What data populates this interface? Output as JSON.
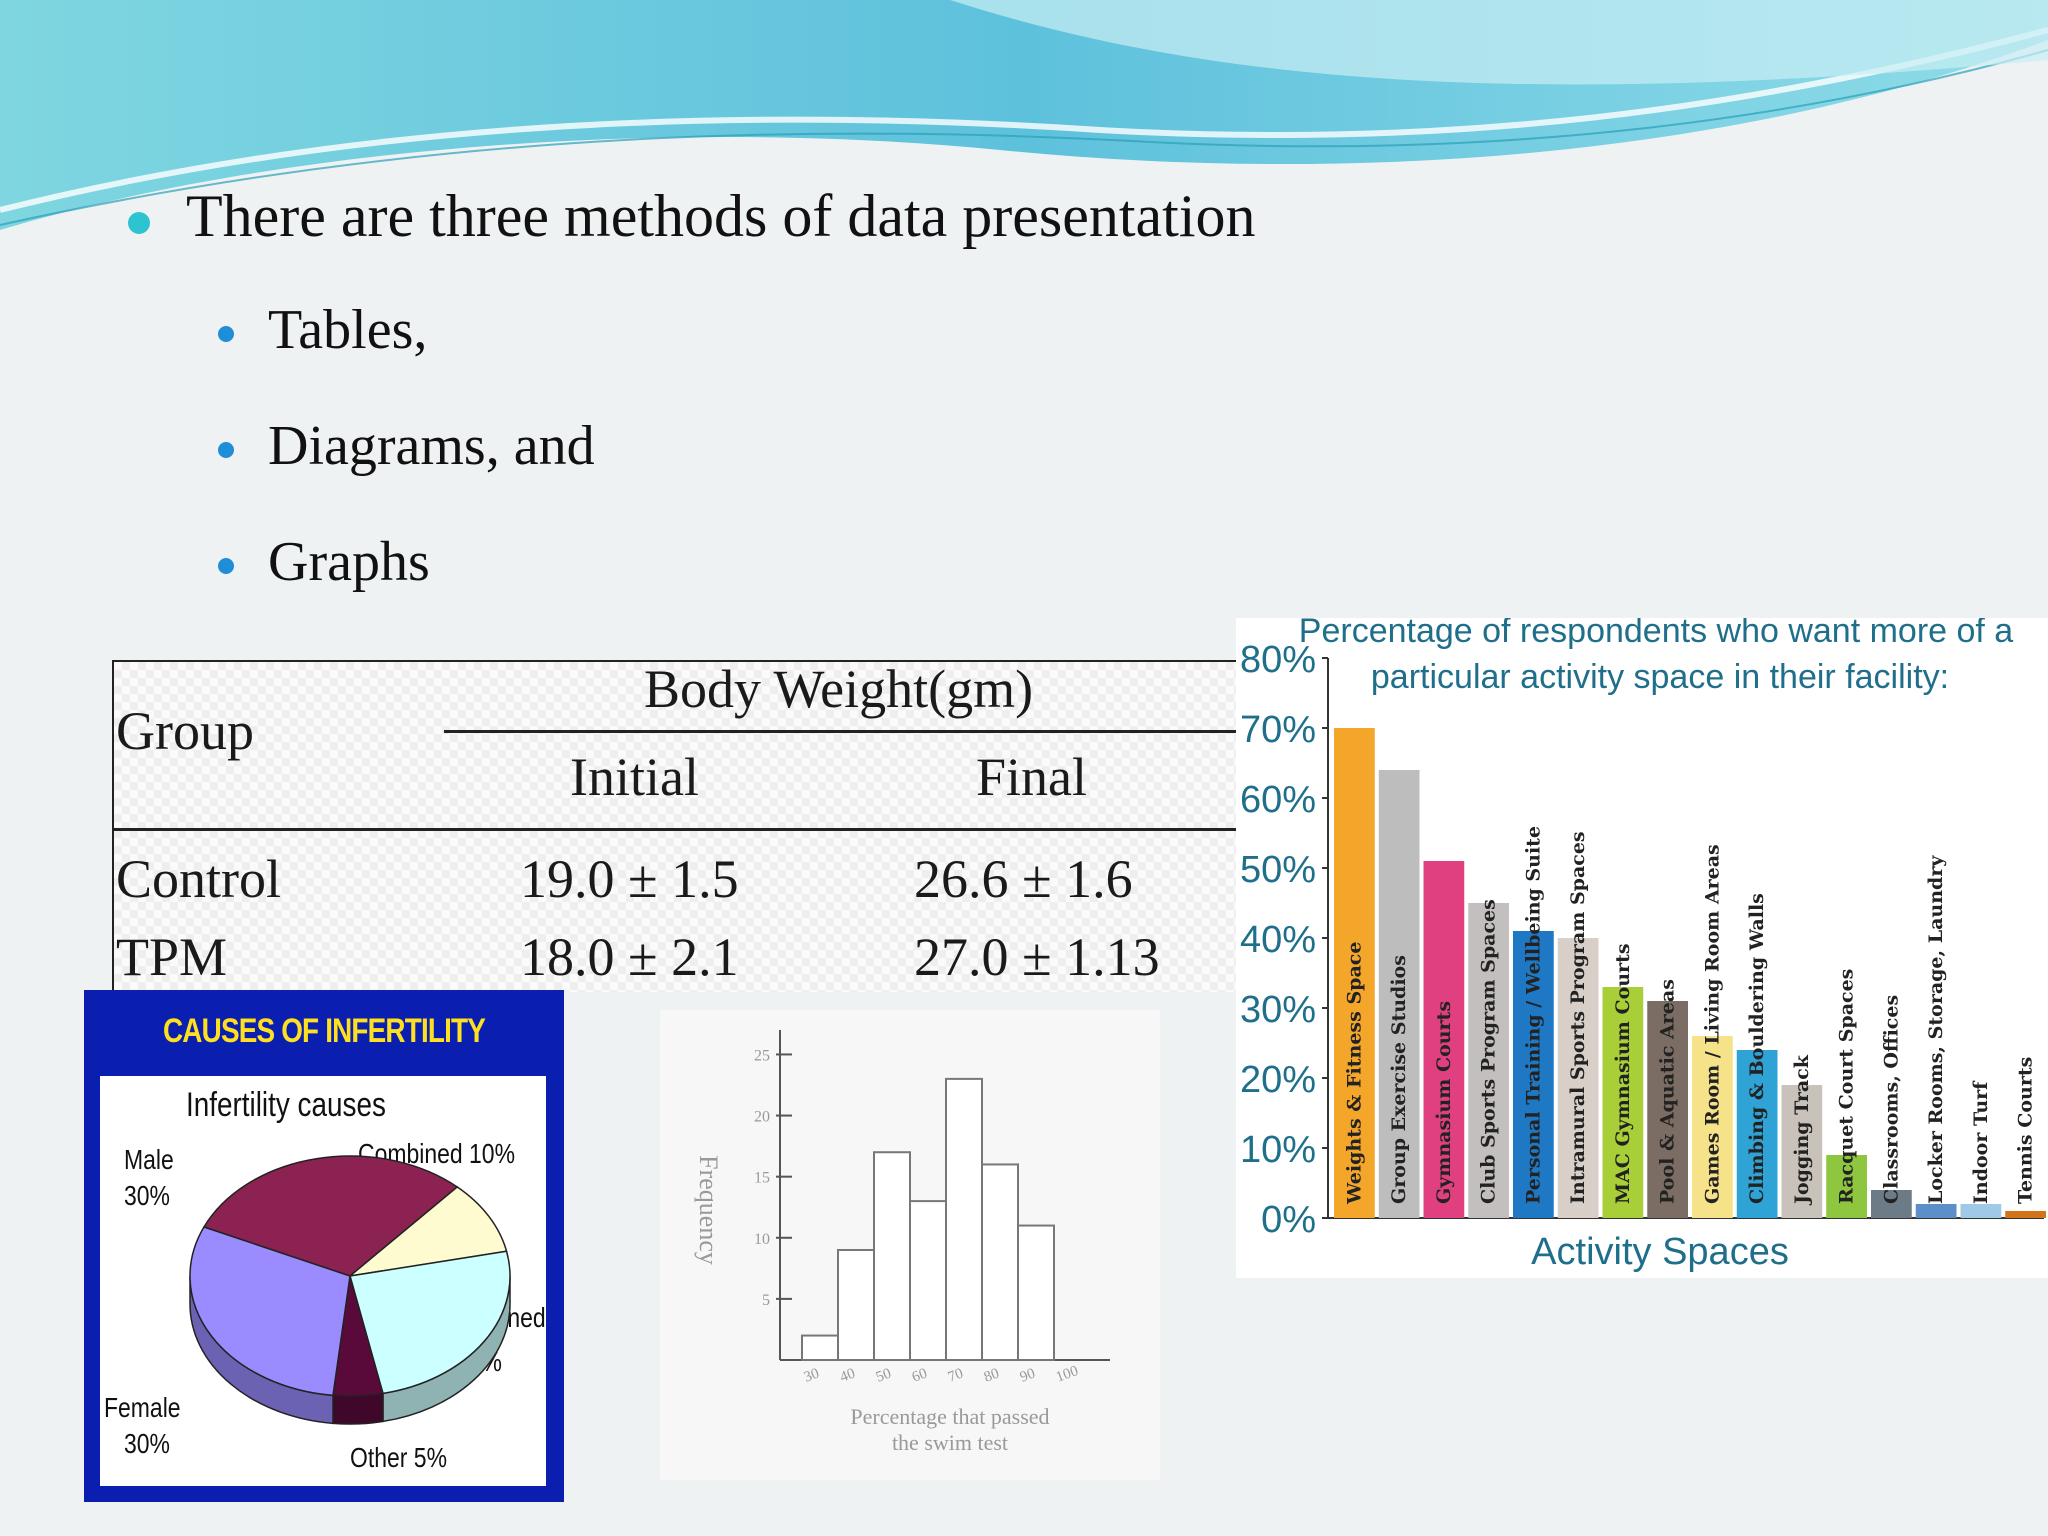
{
  "bullets": {
    "main": "There are three methods of data presentation",
    "sub": [
      "Tables,",
      "Diagrams, and",
      "Graphs"
    ]
  },
  "table": {
    "group_header": "Group",
    "span_header": "Body Weight(gm)",
    "col_initial": "Initial",
    "col_final": "Final",
    "rows": [
      {
        "group": "Control",
        "initial": "19.0 ± 1.5",
        "final": "26.6 ± 1.6"
      },
      {
        "group": "TPM",
        "initial": "18.0 ± 2.1",
        "final": "27.0 ± 1.13"
      }
    ]
  },
  "pie": {
    "title": "CAUSES OF INFERTILITY",
    "subtitle": "Infertility causes",
    "labels": {
      "male": "Male",
      "male_pct": "30%",
      "combined": "Combined 10%",
      "unexplained": "Unexplained",
      "unexplained_pct": "25%",
      "female": "Female",
      "female_pct": "30%",
      "other": "Other 5%"
    }
  },
  "histogram": {
    "ylabel": "Frequency",
    "xlabel_line1": "Percentage that passed",
    "xlabel_line2": "the swim test"
  },
  "bar_chart": {
    "title_line1": "Percentage of respondents who want more of a",
    "title_line2": "particular activity space in their facility:",
    "xlabel": "Activity Spaces"
  },
  "chart_data": [
    {
      "type": "pie",
      "title": "CAUSES OF INFERTILITY",
      "subtitle": "Infertility causes",
      "categories": [
        "Male",
        "Combined",
        "Unexplained",
        "Other",
        "Female"
      ],
      "values": [
        30,
        10,
        25,
        5,
        30
      ],
      "colors": [
        "#8b2252",
        "#fffbd0",
        "#ccffff",
        "#5a0a3a",
        "#9a8cff"
      ]
    },
    {
      "type": "bar",
      "ylabel": "Frequency",
      "xlabel": "Percentage that passed the swim test",
      "categories": [
        "30",
        "40",
        "50",
        "60",
        "70",
        "80",
        "90",
        "100"
      ],
      "values": [
        2,
        9,
        17,
        13,
        23,
        16,
        11,
        0
      ],
      "yticks": [
        5,
        10,
        15,
        20,
        25
      ],
      "ylim": [
        0,
        27
      ]
    },
    {
      "type": "bar",
      "title": "Percentage of respondents who want more of a particular activity space in their facility:",
      "xlabel": "Activity Spaces",
      "ylabel": "",
      "ylim": [
        0,
        80
      ],
      "yticks": [
        "0%",
        "10%",
        "20%",
        "30%",
        "40%",
        "50%",
        "60%",
        "70%",
        "80%"
      ],
      "categories": [
        "Weights & Fitness Space",
        "Group Exercise Studios",
        "Gymnasium Courts",
        "Club Sports Program Spaces",
        "Personal Training / Wellbeing Suite",
        "Intramural Sports Program Spaces",
        "MAC Gymnasium Courts",
        "Pool & Aquatic Areas",
        "Games Room / Living Room Areas",
        "Climbing & Bouldering Walls",
        "Jogging Track",
        "Racquet Court Spaces",
        "Classrooms, Offices",
        "Locker Rooms, Storage, Laundry",
        "Indoor Turf",
        "Tennis Courts"
      ],
      "values": [
        70,
        64,
        51,
        45,
        41,
        40,
        33,
        31,
        26,
        24,
        19,
        9,
        4,
        2,
        2,
        1
      ],
      "colors": [
        "#f4a62a",
        "#bdbdbd",
        "#e0407f",
        "#c4bfbf",
        "#1f78c4",
        "#d8cfc8",
        "#a8cf38",
        "#7b6d63",
        "#f6e289",
        "#2fa3d6",
        "#c8c2bb",
        "#8ec63f",
        "#6d7b86",
        "#5c8ec9",
        "#9fc9e6",
        "#d3731b"
      ]
    }
  ]
}
